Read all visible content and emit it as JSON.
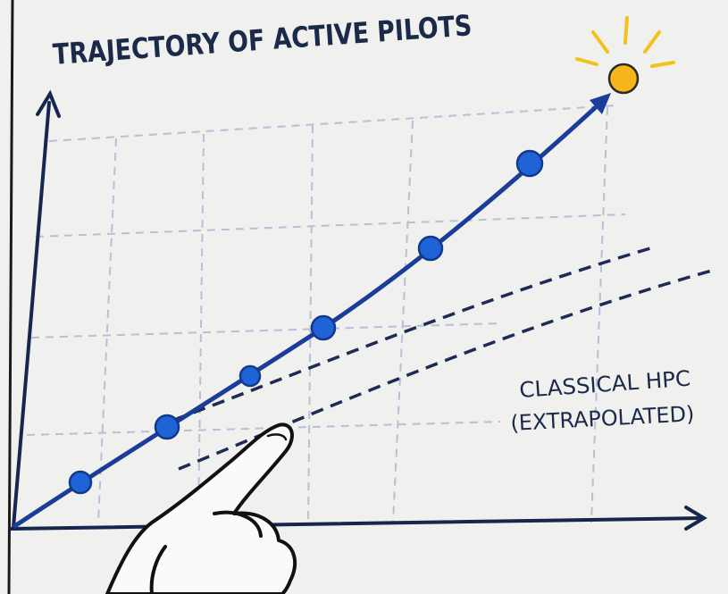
{
  "title": "TRAJECTORY OF ACTIVE PILOTS",
  "annotation": {
    "line1": "CLASSICAL HPC",
    "line2": "(EXTRAPOLATED)"
  }
}
